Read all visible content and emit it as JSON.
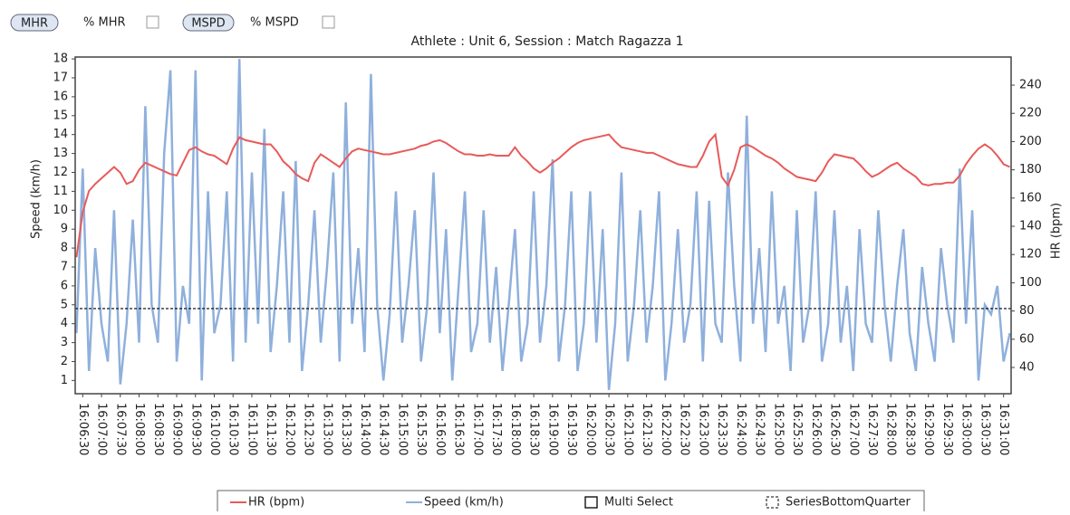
{
  "toolbar": {
    "buttons": [
      "MHR",
      "MSPD"
    ],
    "checks": [
      "% MHR",
      "% MSPD"
    ]
  },
  "chart_data": {
    "type": "line",
    "title": "Athlete : Unit 6, Session : Match Ragazza 1",
    "ylabel": "Speed (km/h)",
    "y2label": "HR (bpm)",
    "x": [
      "16:06:20",
      "16:06:30",
      "16:06:40",
      "16:06:50",
      "16:07:00",
      "16:07:10",
      "16:07:20",
      "16:07:30",
      "16:07:40",
      "16:07:50",
      "16:08:00",
      "16:08:10",
      "16:08:20",
      "16:08:30",
      "16:08:40",
      "16:08:50",
      "16:09:00",
      "16:09:10",
      "16:09:20",
      "16:09:30",
      "16:09:40",
      "16:09:50",
      "16:10:00",
      "16:10:10",
      "16:10:20",
      "16:10:30",
      "16:10:40",
      "16:10:50",
      "16:11:00",
      "16:11:10",
      "16:11:20",
      "16:11:30",
      "16:11:40",
      "16:11:50",
      "16:12:00",
      "16:12:10",
      "16:12:20",
      "16:12:30",
      "16:12:40",
      "16:12:50",
      "16:13:00",
      "16:13:10",
      "16:13:20",
      "16:13:30",
      "16:13:40",
      "16:13:50",
      "16:14:00",
      "16:14:10",
      "16:14:20",
      "16:14:30",
      "16:14:40",
      "16:14:50",
      "16:15:00",
      "16:15:10",
      "16:15:20",
      "16:15:30",
      "16:15:40",
      "16:15:50",
      "16:16:00",
      "16:16:10",
      "16:16:20",
      "16:16:30",
      "16:16:40",
      "16:16:50",
      "16:17:00",
      "16:17:10",
      "16:17:20",
      "16:17:30",
      "16:17:40",
      "16:17:50",
      "16:18:00",
      "16:18:10",
      "16:18:20",
      "16:18:30",
      "16:18:40",
      "16:18:50",
      "16:19:00",
      "16:19:10",
      "16:19:20",
      "16:19:30",
      "16:19:40",
      "16:19:50",
      "16:20:00",
      "16:20:10",
      "16:20:20",
      "16:20:30",
      "16:20:40",
      "16:20:50",
      "16:21:00",
      "16:21:10",
      "16:21:20",
      "16:21:30",
      "16:21:40",
      "16:21:50",
      "16:22:00",
      "16:22:10",
      "16:22:20",
      "16:22:30",
      "16:22:40",
      "16:22:50",
      "16:23:00",
      "16:23:10",
      "16:23:20",
      "16:23:30",
      "16:23:40",
      "16:23:50",
      "16:24:00",
      "16:24:10",
      "16:24:20",
      "16:24:30",
      "16:24:40",
      "16:24:50",
      "16:25:00",
      "16:25:10",
      "16:25:20",
      "16:25:30",
      "16:25:40",
      "16:25:50",
      "16:26:00",
      "16:26:10",
      "16:26:20",
      "16:26:30",
      "16:26:40",
      "16:26:50",
      "16:27:00",
      "16:27:10",
      "16:27:20",
      "16:27:30",
      "16:27:40",
      "16:27:50",
      "16:28:00",
      "16:28:10",
      "16:28:20",
      "16:28:30",
      "16:28:40",
      "16:28:50",
      "16:29:00",
      "16:29:10",
      "16:29:20",
      "16:29:30",
      "16:29:40",
      "16:29:50",
      "16:30:00",
      "16:30:10",
      "16:30:20",
      "16:30:30",
      "16:30:40",
      "16:30:50",
      "16:31:00",
      "16:31:10"
    ],
    "series": [
      {
        "name": "HR (bpm)",
        "color": "#e85a5a",
        "axis": "y2",
        "values": [
          118,
          150,
          165,
          170,
          174,
          178,
          182,
          178,
          170,
          172,
          180,
          185,
          183,
          181,
          179,
          177,
          176,
          185,
          194,
          196,
          193,
          191,
          190,
          187,
          184,
          195,
          203,
          201,
          200,
          199,
          198,
          198,
          193,
          186,
          182,
          177,
          174,
          172,
          185,
          191,
          188,
          185,
          182,
          188,
          193,
          195,
          194,
          193,
          192,
          191,
          191,
          192,
          193,
          194,
          195,
          197,
          198,
          200,
          201,
          199,
          196,
          193,
          191,
          191,
          190,
          190,
          191,
          190,
          190,
          190,
          196,
          190,
          186,
          181,
          178,
          181,
          185,
          188,
          192,
          196,
          199,
          201,
          202,
          203,
          204,
          205,
          200,
          196,
          195,
          194,
          193,
          192,
          192,
          190,
          188,
          186,
          184,
          183,
          182,
          182,
          190,
          200,
          205,
          175,
          169,
          180,
          196,
          198,
          196,
          193,
          190,
          188,
          185,
          181,
          178,
          175,
          174,
          173,
          172,
          178,
          186,
          191,
          190,
          189,
          188,
          184,
          179,
          175,
          177,
          180,
          183,
          185,
          181,
          178,
          175,
          170,
          169,
          170,
          170,
          171,
          171,
          176,
          184,
          190,
          195,
          198,
          195,
          190,
          184,
          182
        ]
      },
      {
        "name": "Speed (km/h)",
        "color": "#8fb0dc",
        "values": [
          3.5,
          12.2,
          1.5,
          8,
          4,
          2,
          10,
          0.8,
          4,
          9.5,
          3,
          15.5,
          5,
          3,
          13,
          17.4,
          2,
          6,
          4,
          17.4,
          1,
          11,
          3.5,
          5,
          11,
          2,
          18,
          3,
          12,
          4,
          14.3,
          2.5,
          6,
          11,
          3,
          12.6,
          1.5,
          5,
          10,
          3,
          7,
          12,
          2,
          15.7,
          4,
          8,
          2.5,
          17.2,
          5,
          1,
          4.5,
          11,
          3,
          6,
          10,
          2,
          5,
          12,
          3.5,
          9,
          1,
          6,
          11,
          2.5,
          4,
          10,
          3,
          7,
          1.5,
          5,
          9,
          2,
          4,
          11,
          3,
          6,
          12.7,
          2,
          5,
          11,
          1.5,
          4,
          11,
          3,
          9,
          0.5,
          4,
          12,
          2,
          5,
          10,
          3,
          6,
          11,
          1,
          4,
          9,
          3,
          5,
          11,
          2,
          10.5,
          4,
          3,
          12,
          6,
          2,
          15,
          4,
          8,
          2.5,
          11,
          4,
          6,
          1.5,
          10,
          3,
          5,
          11,
          2,
          4,
          10,
          3,
          6,
          1.5,
          9,
          4,
          3,
          10,
          5,
          2,
          6,
          9,
          3.5,
          1.5,
          7,
          4,
          2,
          8,
          5,
          3,
          12.2,
          4,
          10,
          1,
          5,
          4.5,
          6,
          2,
          3.5
        ]
      }
    ],
    "threshold": 4.8,
    "legend_items": [
      "Multi Select",
      "SeriesBottomQuarter"
    ],
    "xlim": [
      "16:06:18",
      "16:31:12"
    ],
    "xticks": [
      "16:06:30",
      "16:07:00",
      "16:07:30",
      "16:08:00",
      "16:08:30",
      "16:09:00",
      "16:09:30",
      "16:10:00",
      "16:10:30",
      "16:11:00",
      "16:11:30",
      "16:12:00",
      "16:12:30",
      "16:13:00",
      "16:13:30",
      "16:14:00",
      "16:14:30",
      "16:15:00",
      "16:15:30",
      "16:16:00",
      "16:16:30",
      "16:17:00",
      "16:17:30",
      "16:18:00",
      "16:18:30",
      "16:19:00",
      "16:19:30",
      "16:20:00",
      "16:20:30",
      "16:21:00",
      "16:21:30",
      "16:22:00",
      "16:22:30",
      "16:23:00",
      "16:23:30",
      "16:24:00",
      "16:24:30",
      "16:25:00",
      "16:25:30",
      "16:26:00",
      "16:26:30",
      "16:27:00",
      "16:27:30",
      "16:28:00",
      "16:28:30",
      "16:29:00",
      "16:29:30",
      "16:30:00",
      "16:30:30",
      "16:31:00"
    ],
    "ylim": [
      0.3,
      18.1
    ],
    "yticks": [
      1,
      2,
      3,
      4,
      5,
      6,
      7,
      8,
      9,
      10,
      11,
      12,
      13,
      14,
      15,
      16,
      17,
      18
    ],
    "y2lim": [
      21.4,
      259.9
    ],
    "y2ticks": [
      40,
      60,
      80,
      100,
      120,
      140,
      160,
      180,
      200,
      220,
      240
    ]
  }
}
